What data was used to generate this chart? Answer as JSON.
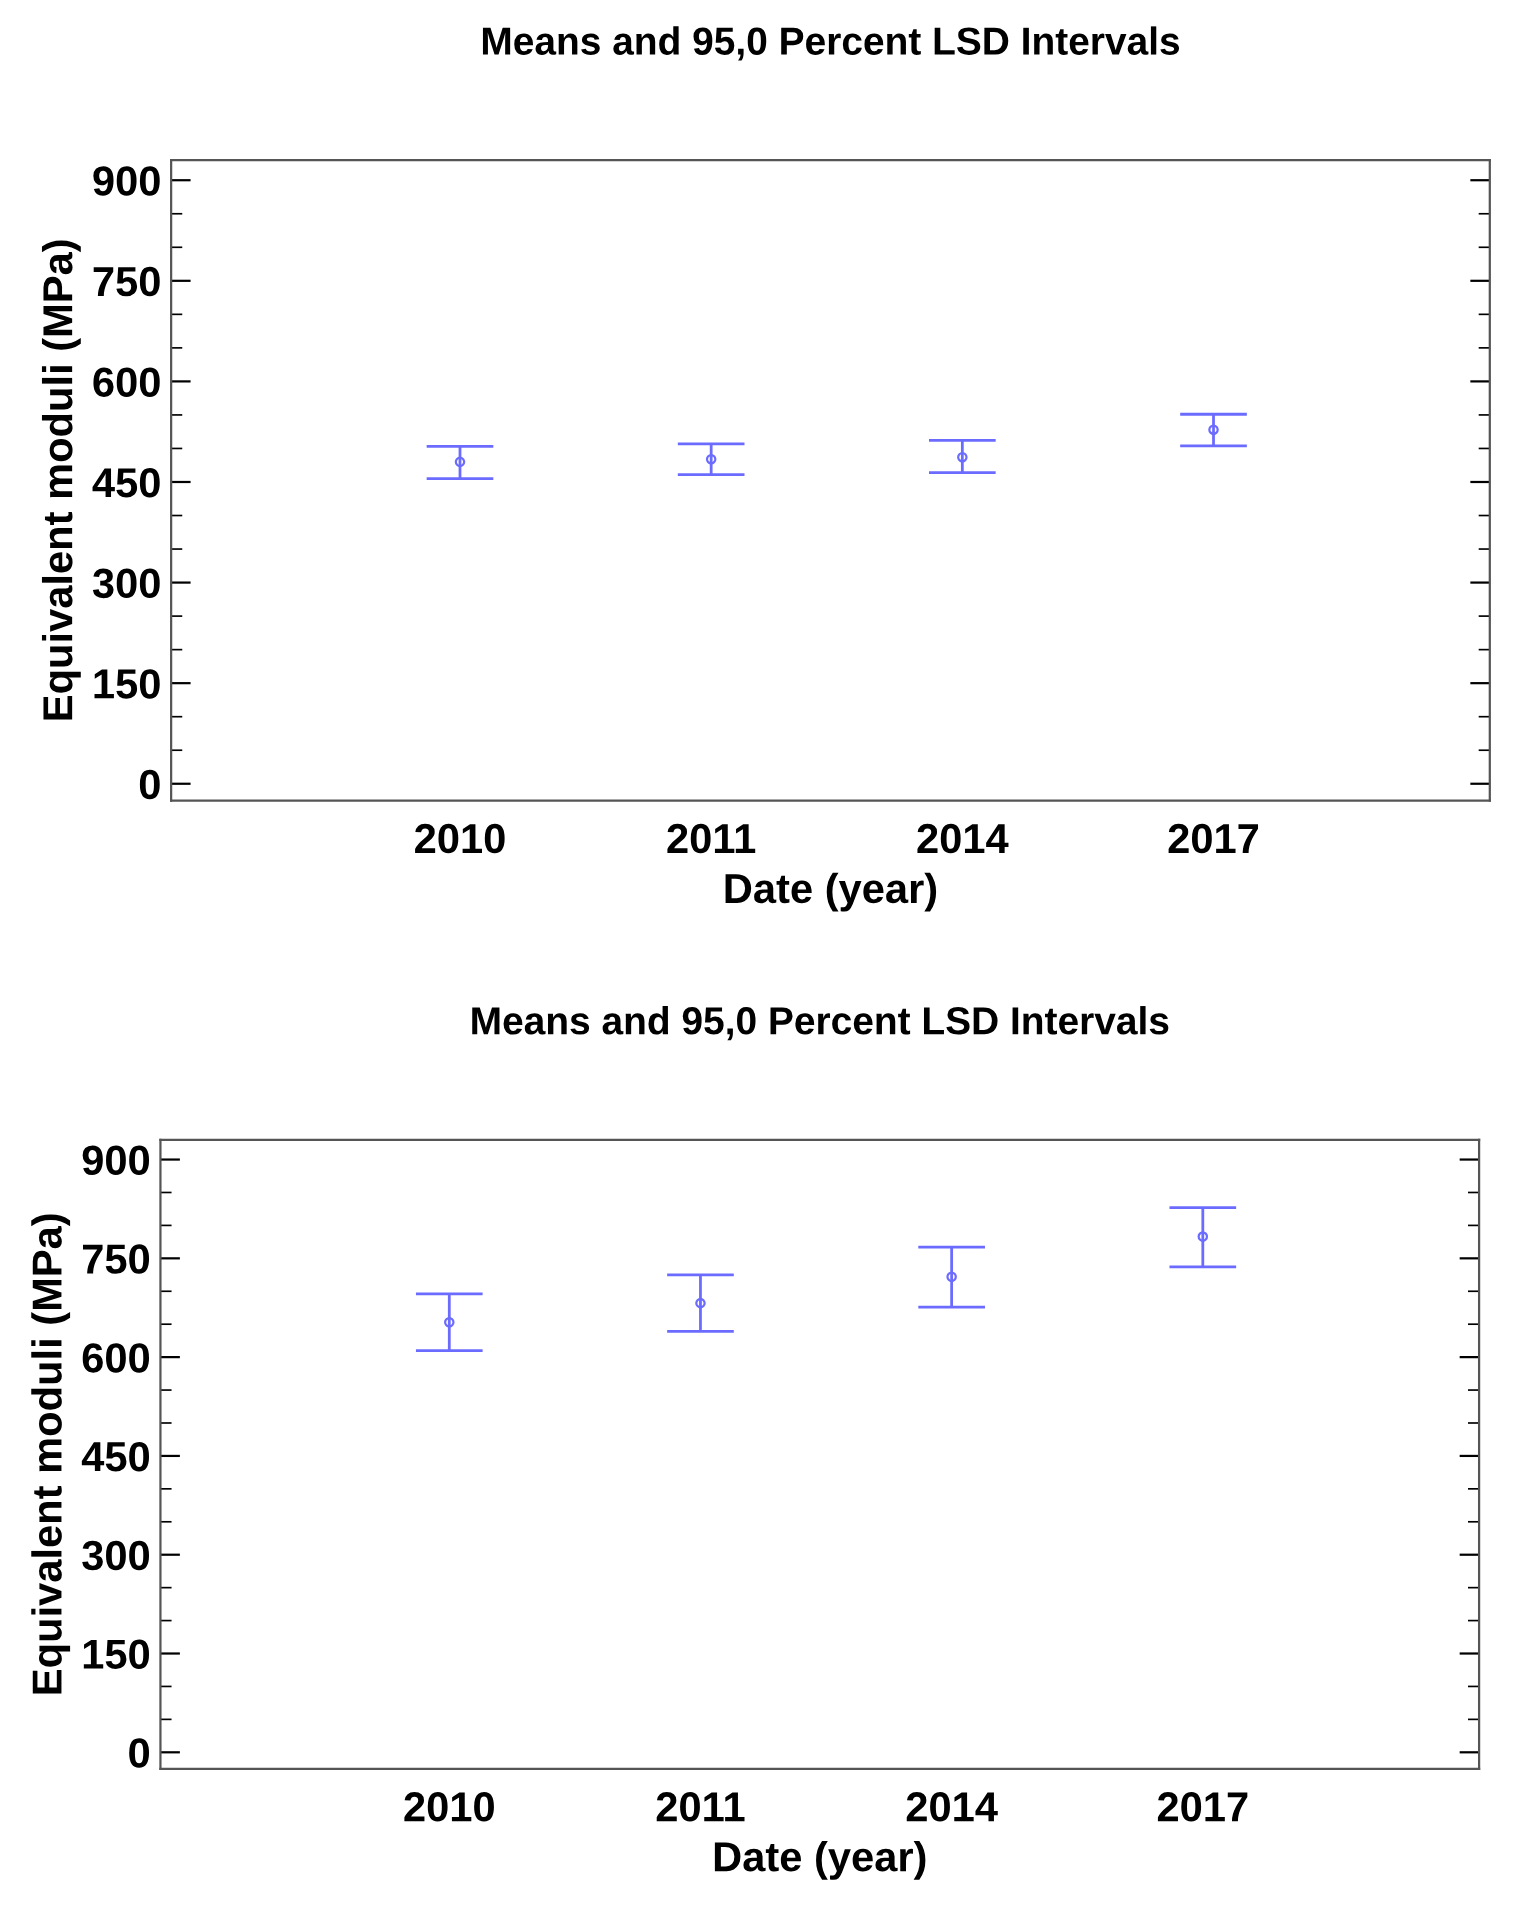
{
  "chart_data": [
    {
      "type": "scatter",
      "title": "Means and 95,0 Percent LSD Intervals",
      "xlabel": "Date (year)",
      "ylabel": "Equivalent moduli (MPa)",
      "categories": [
        "2010",
        "2011",
        "2014",
        "2017"
      ],
      "series": [
        {
          "color": "#6b6bff",
          "values": [
            480,
            484,
            487,
            528
          ],
          "errors": [
            [
              455,
              503
            ],
            [
              461,
              507
            ],
            [
              464,
              512
            ],
            [
              504,
              551
            ]
          ]
        }
      ],
      "ylim": [
        -25,
        930
      ],
      "yticks": [
        0,
        150,
        300,
        450,
        600,
        750,
        900
      ],
      "marker": "circle",
      "grid": false,
      "legend": false
    },
    {
      "type": "scatter",
      "title": "Means and 95,0 Percent LSD Intervals",
      "xlabel": "Date (year)",
      "ylabel": "Equivalent moduli (MPa)",
      "categories": [
        "2010",
        "2011",
        "2014",
        "2017"
      ],
      "series": [
        {
          "color": "#6b6bff",
          "values": [
            653,
            682,
            722,
            783
          ],
          "errors": [
            [
              610,
              696
            ],
            [
              639,
              725
            ],
            [
              676,
              767
            ],
            [
              737,
              827
            ]
          ]
        }
      ],
      "ylim": [
        -25,
        930
      ],
      "yticks": [
        0,
        150,
        300,
        450,
        600,
        750,
        900
      ],
      "marker": "circle",
      "grid": false,
      "legend": false
    }
  ]
}
